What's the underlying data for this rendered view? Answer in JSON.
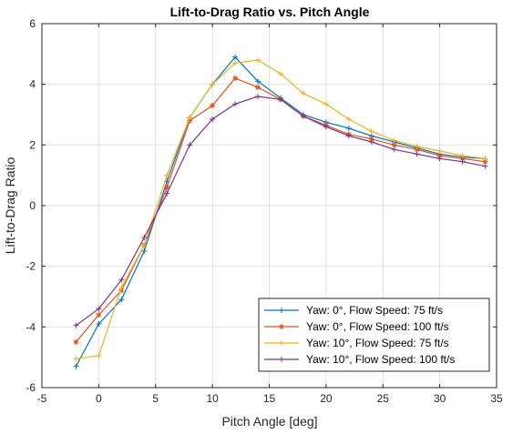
{
  "chart_data": {
    "type": "line",
    "title": "Lift-to-Drag Ratio vs. Pitch Angle",
    "xlabel": "Pitch Angle [deg]",
    "ylabel": "Lift-to-Drag Ratio",
    "xlim": [
      -5,
      35
    ],
    "ylim": [
      -6,
      6
    ],
    "xticks": [
      -5,
      0,
      5,
      10,
      15,
      20,
      25,
      30,
      35
    ],
    "yticks": [
      -6,
      -4,
      -2,
      0,
      2,
      4,
      6
    ],
    "grid": true,
    "legend_position": "bottom-right",
    "series": [
      {
        "name": "Yaw: 0°, Flow Speed: 75 ft/s",
        "color": "#0072BD",
        "marker": "plus",
        "x": [
          -2,
          0,
          2,
          4,
          6,
          8,
          10,
          12,
          14,
          16,
          18,
          20,
          22,
          24,
          26,
          28,
          30,
          32,
          34
        ],
        "y": [
          -5.3,
          -3.9,
          -3.1,
          -1.5,
          0.8,
          2.9,
          4.0,
          4.9,
          4.1,
          3.55,
          3.0,
          2.75,
          2.55,
          2.3,
          2.1,
          1.9,
          1.7,
          1.6,
          1.55
        ]
      },
      {
        "name": "Yaw: 0°, Flow Speed: 100 ft/s",
        "color": "#D95319",
        "marker": "star",
        "x": [
          -2,
          0,
          2,
          4,
          6,
          8,
          10,
          12,
          14,
          16,
          18,
          20,
          22,
          24,
          26,
          28,
          30,
          32,
          34
        ],
        "y": [
          -4.5,
          -3.6,
          -2.8,
          -1.3,
          0.6,
          2.8,
          3.3,
          4.2,
          3.9,
          3.5,
          2.95,
          2.65,
          2.35,
          2.2,
          2.0,
          1.85,
          1.65,
          1.55,
          1.45
        ]
      },
      {
        "name": "Yaw: 10°, Flow Speed: 75 ft/s",
        "color": "#EDB120",
        "marker": "plus",
        "x": [
          -2,
          0,
          2,
          4,
          6,
          8,
          10,
          12,
          14,
          16,
          18,
          20,
          22,
          24,
          26,
          28,
          30,
          32,
          34
        ],
        "y": [
          -5.05,
          -4.95,
          -2.7,
          -1.3,
          1.0,
          2.9,
          4.0,
          4.7,
          4.8,
          4.35,
          3.7,
          3.35,
          2.85,
          2.45,
          2.15,
          1.95,
          1.8,
          1.65,
          1.55
        ]
      },
      {
        "name": "Yaw: 10°, Flow Speed: 100 ft/s",
        "color": "#7E2F8E",
        "marker": "plus",
        "x": [
          -2,
          0,
          2,
          4,
          6,
          8,
          10,
          12,
          14,
          16,
          18,
          20,
          22,
          24,
          26,
          28,
          30,
          32,
          34
        ],
        "y": [
          -3.95,
          -3.4,
          -2.45,
          -1.05,
          0.4,
          2.0,
          2.85,
          3.35,
          3.6,
          3.5,
          2.95,
          2.6,
          2.3,
          2.1,
          1.85,
          1.7,
          1.55,
          1.45,
          1.3
        ]
      }
    ]
  }
}
